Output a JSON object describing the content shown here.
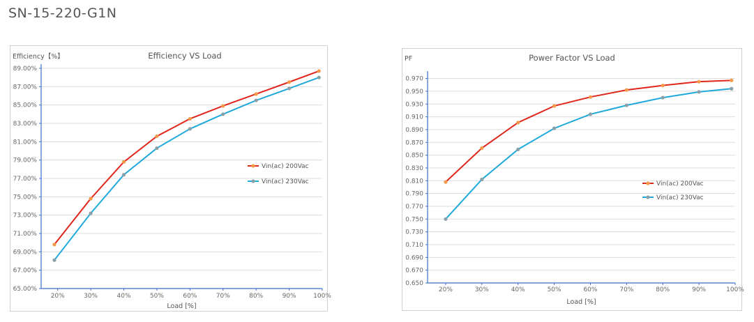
{
  "page": {
    "title": "SN-15-220-G1N"
  },
  "chart_data": [
    {
      "type": "line",
      "title": "Efficiency VS Load",
      "ylabel": "Efficiency【%】",
      "xlabel": "Load [%]",
      "x_ticks": [
        "20%",
        "30%",
        "40%",
        "50%",
        "60%",
        "70%",
        "80%",
        "90%",
        "100%"
      ],
      "y_ticks": [
        "65.00%",
        "67.00%",
        "69.00%",
        "71.00%",
        "73.00%",
        "75.00%",
        "77.00%",
        "79.00%",
        "81.00%",
        "83.00%",
        "85.00%",
        "87.00%",
        "89.00%"
      ],
      "xlim": [
        15,
        100
      ],
      "ylim": [
        65,
        89
      ],
      "grid": true,
      "legend_position": "right-middle",
      "series": [
        {
          "name": "Vin(ac) 200Vac",
          "color": "#e0261b",
          "marker_color": "#f29a4a",
          "points": [
            [
              19,
              69.8
            ],
            [
              30,
              74.8
            ],
            [
              40,
              78.8
            ],
            [
              50,
              81.6
            ],
            [
              60,
              83.5
            ],
            [
              70,
              84.9
            ],
            [
              80,
              86.2
            ],
            [
              90,
              87.5
            ],
            [
              99,
              88.7
            ]
          ]
        },
        {
          "name": "Vin(ac) 230Vac",
          "color": "#1fa9db",
          "marker_color": "#8aa0a8",
          "points": [
            [
              19,
              68.1
            ],
            [
              30,
              73.2
            ],
            [
              40,
              77.4
            ],
            [
              50,
              80.3
            ],
            [
              60,
              82.4
            ],
            [
              70,
              84.0
            ],
            [
              80,
              85.5
            ],
            [
              90,
              86.8
            ],
            [
              99,
              88.0
            ]
          ]
        }
      ]
    },
    {
      "type": "line",
      "title": "Power Factor VS Load",
      "ylabel": "PF",
      "xlabel": "Load [%]",
      "x_ticks": [
        "20%",
        "30%",
        "40%",
        "50%",
        "60%",
        "70%",
        "80%",
        "90%",
        "100%"
      ],
      "y_ticks": [
        "0.650",
        "0.670",
        "0.690",
        "0.710",
        "0.730",
        "0.750",
        "0.770",
        "0.790",
        "0.810",
        "0.830",
        "0.850",
        "0.870",
        "0.890",
        "0.910",
        "0.930",
        "0.950",
        "0.970"
      ],
      "xlim": [
        15,
        100
      ],
      "ylim": [
        0.65,
        0.975
      ],
      "grid": true,
      "legend_position": "right-bottom",
      "series": [
        {
          "name": "Vin(ac) 200Vac",
          "color": "#e0261b",
          "marker_color": "#f29a4a",
          "points": [
            [
              20,
              0.808
            ],
            [
              30,
              0.861
            ],
            [
              40,
              0.901
            ],
            [
              50,
              0.927
            ],
            [
              60,
              0.941
            ],
            [
              70,
              0.952
            ],
            [
              80,
              0.959
            ],
            [
              90,
              0.965
            ],
            [
              99,
              0.967
            ]
          ]
        },
        {
          "name": "Vin(ac) 230Vac",
          "color": "#1fa9db",
          "marker_color": "#8aa0a8",
          "points": [
            [
              20,
              0.75
            ],
            [
              30,
              0.812
            ],
            [
              40,
              0.859
            ],
            [
              50,
              0.892
            ],
            [
              60,
              0.914
            ],
            [
              70,
              0.928
            ],
            [
              80,
              0.94
            ],
            [
              90,
              0.949
            ],
            [
              99,
              0.954
            ]
          ]
        }
      ]
    }
  ]
}
